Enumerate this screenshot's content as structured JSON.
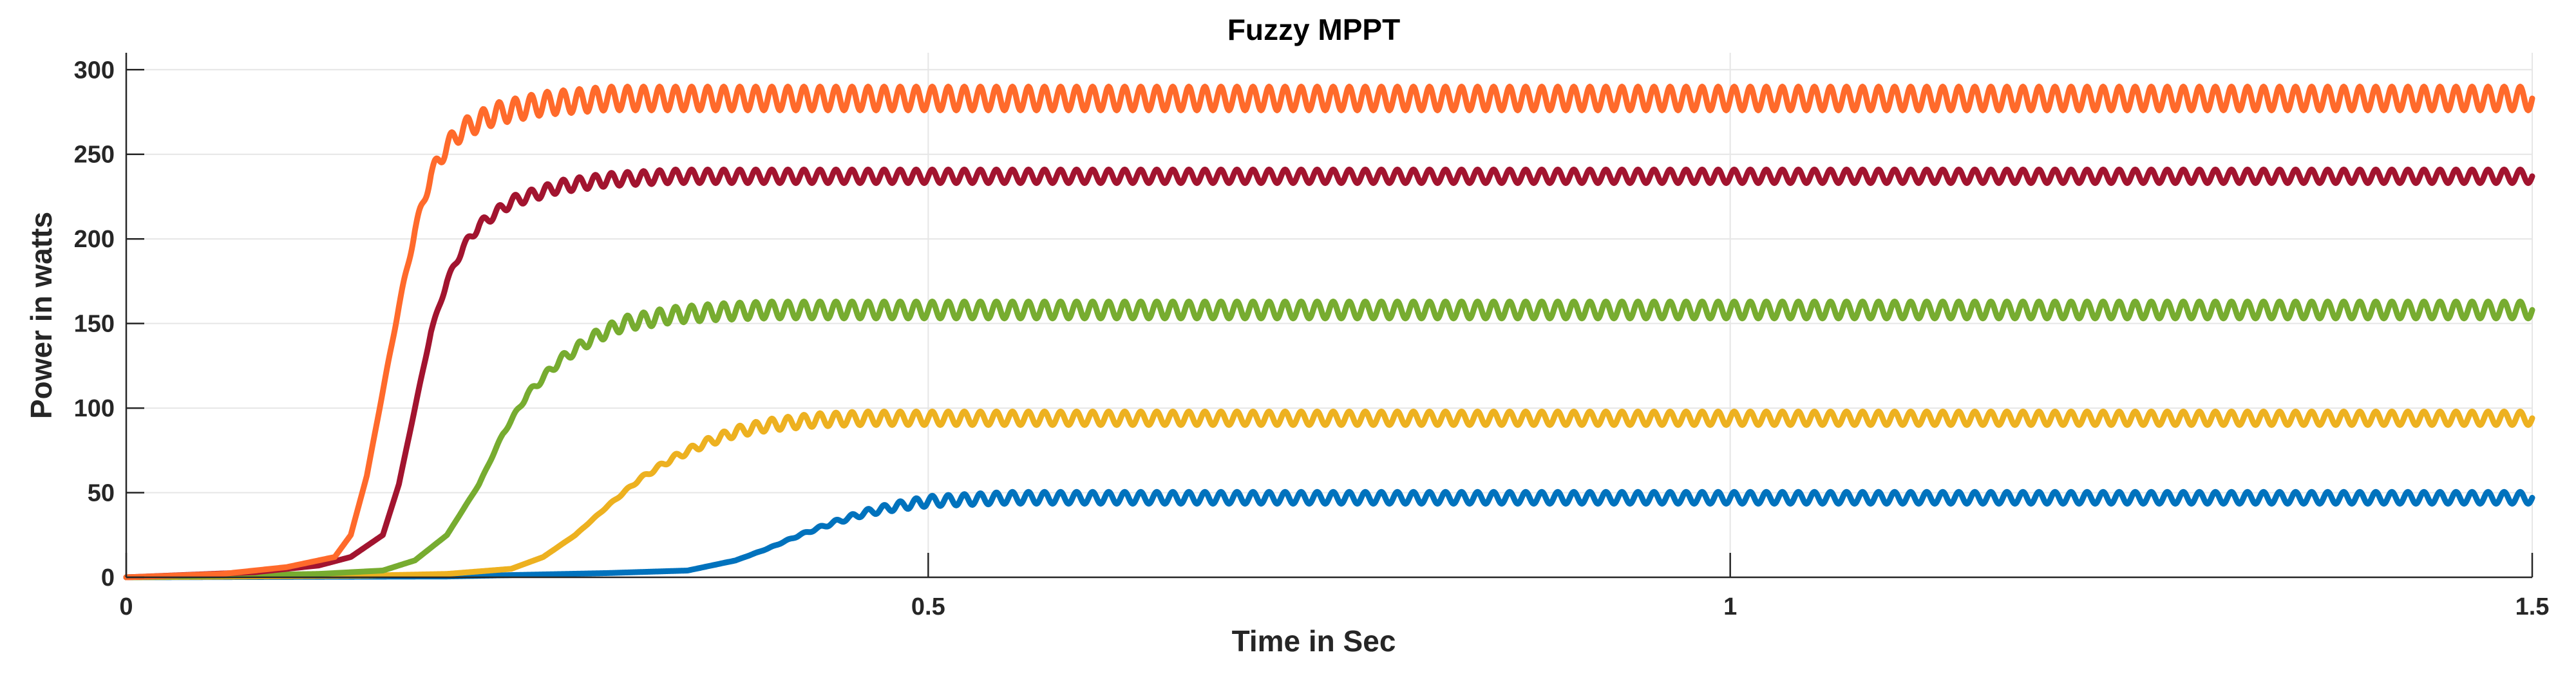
{
  "chart_data": {
    "type": "line",
    "title": "Fuzzy MPPT",
    "xlabel": "Time in Sec",
    "ylabel": "Power in watts",
    "xlim": [
      0,
      1.5
    ],
    "ylim": [
      0,
      310
    ],
    "xticks": [
      0,
      0.5,
      1,
      1.5
    ],
    "xtick_labels": [
      "0",
      "0.5",
      "1",
      "1.5"
    ],
    "yticks": [
      0,
      50,
      100,
      150,
      200,
      250,
      300
    ],
    "ytick_labels": [
      "0",
      "50",
      "100",
      "150",
      "200",
      "250",
      "300"
    ],
    "grid": true,
    "legend": "none",
    "series": [
      {
        "color": "#0072BD",
        "steady_state": 47,
        "ripple": 7,
        "points": [
          [
            0,
            0
          ],
          [
            0.2,
            0.5
          ],
          [
            0.25,
            1.5
          ],
          [
            0.3,
            2.5
          ],
          [
            0.35,
            4
          ],
          [
            0.38,
            10
          ],
          [
            0.4,
            17
          ],
          [
            0.42,
            25
          ],
          [
            0.44,
            32
          ],
          [
            0.46,
            38
          ],
          [
            0.48,
            42
          ],
          [
            0.5,
            45
          ],
          [
            0.55,
            47
          ],
          [
            0.6,
            47
          ],
          [
            1.5,
            47
          ]
        ]
      },
      {
        "color": "#EDB120",
        "steady_state": 94,
        "ripple": 8,
        "points": [
          [
            0,
            0
          ],
          [
            0.15,
            1
          ],
          [
            0.2,
            2
          ],
          [
            0.24,
            5
          ],
          [
            0.26,
            12
          ],
          [
            0.28,
            25
          ],
          [
            0.3,
            42
          ],
          [
            0.32,
            58
          ],
          [
            0.34,
            70
          ],
          [
            0.36,
            79
          ],
          [
            0.38,
            86
          ],
          [
            0.4,
            90
          ],
          [
            0.43,
            93
          ],
          [
            0.46,
            94
          ],
          [
            1.5,
            94
          ]
        ]
      },
      {
        "color": "#77AC30",
        "steady_state": 158,
        "ripple": 10,
        "points": [
          [
            0,
            0
          ],
          [
            0.12,
            2
          ],
          [
            0.16,
            4
          ],
          [
            0.18,
            10
          ],
          [
            0.2,
            25
          ],
          [
            0.22,
            55
          ],
          [
            0.235,
            85
          ],
          [
            0.25,
            108
          ],
          [
            0.27,
            128
          ],
          [
            0.29,
            141
          ],
          [
            0.31,
            150
          ],
          [
            0.34,
            155
          ],
          [
            0.37,
            157
          ],
          [
            0.4,
            158
          ],
          [
            1.5,
            158
          ]
        ]
      },
      {
        "color": "#A2142F",
        "steady_state": 237,
        "ripple": 8,
        "points": [
          [
            0,
            0
          ],
          [
            0.08,
            3
          ],
          [
            0.12,
            7
          ],
          [
            0.14,
            12
          ],
          [
            0.16,
            25
          ],
          [
            0.17,
            55
          ],
          [
            0.18,
            100
          ],
          [
            0.19,
            145
          ],
          [
            0.2,
            175
          ],
          [
            0.21,
            195
          ],
          [
            0.22,
            208
          ],
          [
            0.24,
            222
          ],
          [
            0.27,
            231
          ],
          [
            0.3,
            235
          ],
          [
            0.34,
            237
          ],
          [
            1.5,
            237
          ]
        ]
      },
      {
        "color": "#FF6A2B",
        "steady_state": 283,
        "ripple": 14,
        "points": [
          [
            0,
            0
          ],
          [
            0.06,
            2
          ],
          [
            0.1,
            6
          ],
          [
            0.13,
            12
          ],
          [
            0.14,
            25
          ],
          [
            0.15,
            60
          ],
          [
            0.16,
            110
          ],
          [
            0.17,
            160
          ],
          [
            0.18,
            205
          ],
          [
            0.19,
            238
          ],
          [
            0.2,
            255
          ],
          [
            0.21,
            265
          ],
          [
            0.23,
            274
          ],
          [
            0.26,
            280
          ],
          [
            0.3,
            283
          ],
          [
            1.5,
            283
          ]
        ]
      }
    ]
  }
}
